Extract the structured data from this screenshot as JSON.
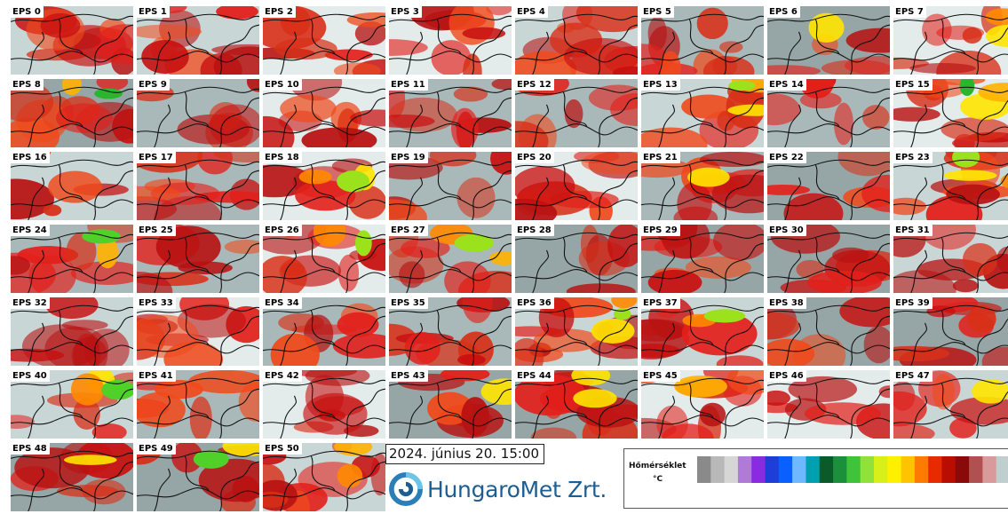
{
  "members": [
    "EPS 0",
    "EPS 1",
    "EPS 2",
    "EPS 3",
    "EPS 4",
    "EPS 5",
    "EPS 6",
    "EPS 7",
    "EPS 8",
    "EPS 9",
    "EPS 10",
    "EPS 11",
    "EPS 12",
    "EPS 13",
    "EPS 14",
    "EPS 15",
    "EPS 16",
    "EPS 17",
    "EPS 18",
    "EPS 19",
    "EPS 20",
    "EPS 21",
    "EPS 22",
    "EPS 23",
    "EPS 24",
    "EPS 25",
    "EPS 26",
    "EPS 27",
    "EPS 28",
    "EPS 29",
    "EPS 30",
    "EPS 31",
    "EPS 32",
    "EPS 33",
    "EPS 34",
    "EPS 35",
    "EPS 36",
    "EPS 37",
    "EPS 38",
    "EPS 39",
    "EPS 40",
    "EPS 41",
    "EPS 42",
    "EPS 43",
    "EPS 44",
    "EPS 45",
    "EPS 46",
    "EPS 47",
    "EPS 48",
    "EPS 49",
    "EPS 50"
  ],
  "valid_time": "2024. június 20. 15:00",
  "logo_text": "HungaroMet Zrt.",
  "legend": {
    "title": "Hőmérséklet",
    "unit": "°C",
    "colors": [
      "#8a8a8a",
      "#b8b8b8",
      "#d6d6d6",
      "#b07ad8",
      "#8a2be2",
      "#1d3fd8",
      "#0a60ff",
      "#6fb8ff",
      "#00a0b0",
      "#0b5a2a",
      "#1c8f3a",
      "#3fc33a",
      "#8ee23a",
      "#d8f01a",
      "#fff000",
      "#ffc400",
      "#ff7a00",
      "#e82a00",
      "#b80d00",
      "#8a0a0a",
      "#b05050",
      "#d89a9a",
      "#bfcfcf"
    ]
  }
}
